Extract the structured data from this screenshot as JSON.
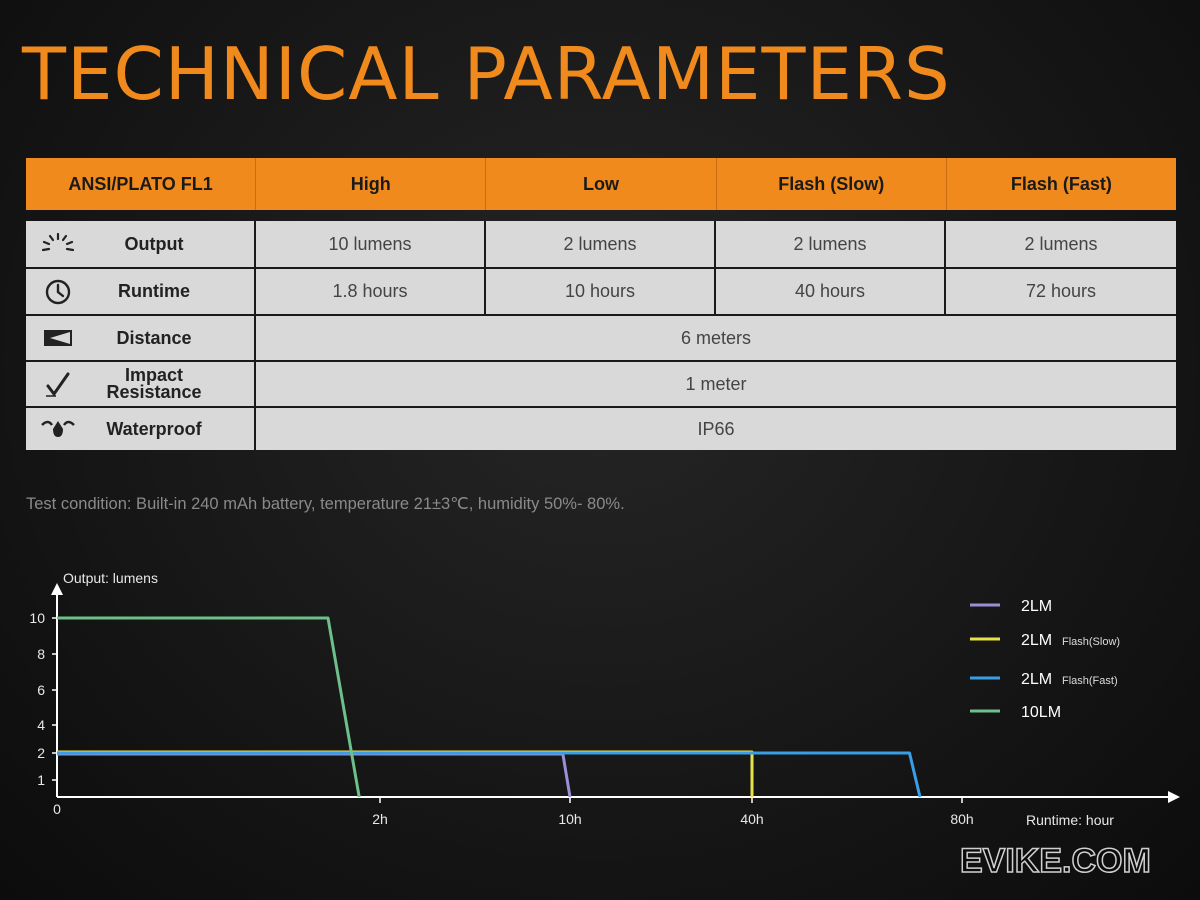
{
  "title": "TECHNICAL PARAMETERS",
  "table": {
    "header": [
      "ANSI/PLATO FL1",
      "High",
      "Low",
      "Flash (Slow)",
      "Flash (Fast)"
    ],
    "rows": {
      "output": {
        "icon": "light-burst-icon",
        "label": "Output",
        "values": [
          "10 lumens",
          "2 lumens",
          "2 lumens",
          "2 lumens"
        ]
      },
      "runtime": {
        "icon": "clock-icon",
        "label": "Runtime",
        "values": [
          "1.8 hours",
          "10 hours",
          "40 hours",
          "72 hours"
        ]
      },
      "distance": {
        "icon": "beam-distance-icon",
        "label": "Distance",
        "value": "6 meters"
      },
      "impact": {
        "icon": "impact-check-icon",
        "label_line1": "Impact",
        "label_line2": "Resistance",
        "value": "1 meter"
      },
      "waterproof": {
        "icon": "water-splash-icon",
        "label": "Waterproof",
        "value": "IP66"
      }
    }
  },
  "note": "Test condition: Built-in 240 mAh battery, temperature 21±3℃, humidity 50%- 80%.",
  "chart_data": {
    "type": "line",
    "ylabel": "Output: lumens",
    "xlabel": "Runtime: hour",
    "y_ticks": [
      0,
      1,
      2,
      4,
      6,
      8,
      10
    ],
    "x_ticks": [
      "0",
      "2h",
      "10h",
      "40h",
      "80h"
    ],
    "x_tick_values": [
      0,
      2,
      10,
      40,
      80
    ],
    "legend_position": "right",
    "series": [
      {
        "name": "2LM",
        "name_sub": "",
        "color": "#9b8fd6",
        "points": [
          [
            0,
            2
          ],
          [
            9.7,
            2
          ],
          [
            10,
            0
          ]
        ]
      },
      {
        "name": "2LM",
        "name_sub": "Flash(Slow)",
        "color": "#e8e24a",
        "points": [
          [
            0,
            2
          ],
          [
            40,
            2
          ],
          [
            40,
            0
          ]
        ]
      },
      {
        "name": "2LM",
        "name_sub": "Flash(Fast)",
        "color": "#3a9ee4",
        "points": [
          [
            0,
            2
          ],
          [
            70,
            2
          ],
          [
            72,
            0
          ]
        ]
      },
      {
        "name": "10LM",
        "name_sub": "",
        "color": "#6dc08a",
        "points": [
          [
            0,
            10
          ],
          [
            1.5,
            10
          ],
          [
            1.8,
            0
          ]
        ]
      }
    ]
  },
  "watermark": "EVIKE.COM"
}
